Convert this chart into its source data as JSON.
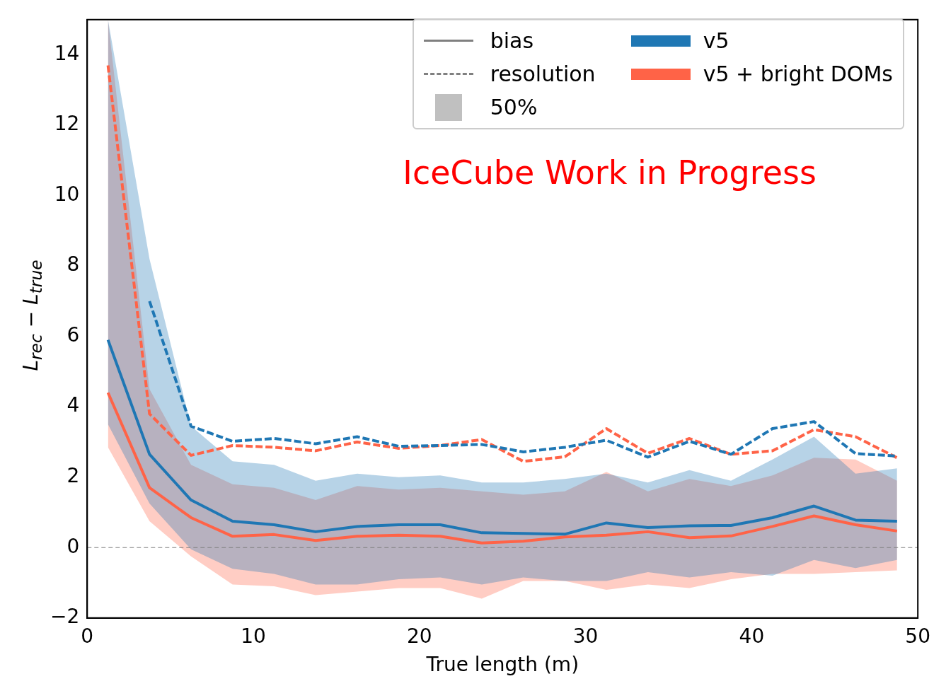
{
  "chart_data": {
    "type": "line",
    "xlabel": "True length (m)",
    "ylabel": "L$_{rec}$ − L$_{true}$",
    "x": [
      1.25,
      3.75,
      6.25,
      8.75,
      11.25,
      13.75,
      16.25,
      18.75,
      21.25,
      23.75,
      26.25,
      28.75,
      31.25,
      33.75,
      36.25,
      38.75,
      41.25,
      43.75,
      46.25,
      48.75
    ],
    "series": [
      {
        "name": "v5",
        "color": "#1f77b4",
        "line_style": "solid",
        "values": [
          5.9,
          2.65,
          1.35,
          0.75,
          0.65,
          0.45,
          0.6,
          0.65,
          0.65,
          0.42,
          0.4,
          0.38,
          0.7,
          0.57,
          0.62,
          0.63,
          0.85,
          1.18,
          0.78,
          0.75
        ],
        "lower": [
          3.5,
          1.25,
          -0.05,
          -0.6,
          -0.75,
          -1.05,
          -1.05,
          -0.9,
          -0.85,
          -1.05,
          -0.85,
          -0.95,
          -0.95,
          -0.7,
          -0.85,
          -0.7,
          -0.8,
          -0.35,
          -0.58,
          -0.35
        ],
        "upper": [
          15,
          8.2,
          3.45,
          2.45,
          2.35,
          1.9,
          2.1,
          2.0,
          2.05,
          1.85,
          1.85,
          1.95,
          2.1,
          1.85,
          2.2,
          1.9,
          2.5,
          3.15,
          2.1,
          2.25
        ]
      },
      {
        "name": "v5 + bright DOMs",
        "color": "#ff6347",
        "line_style": "solid",
        "values": [
          4.4,
          1.7,
          0.85,
          0.32,
          0.37,
          0.2,
          0.32,
          0.35,
          0.32,
          0.13,
          0.18,
          0.3,
          0.35,
          0.45,
          0.28,
          0.33,
          0.6,
          0.9,
          0.65,
          0.47
        ],
        "lower": [
          2.85,
          0.75,
          -0.25,
          -1.05,
          -1.1,
          -1.35,
          -1.25,
          -1.15,
          -1.15,
          -1.45,
          -0.95,
          -0.95,
          -1.2,
          -1.05,
          -1.15,
          -0.9,
          -0.75,
          -0.75,
          -0.7,
          -0.65
        ],
        "upper": [
          15,
          4.5,
          2.35,
          1.8,
          1.7,
          1.35,
          1.75,
          1.65,
          1.7,
          1.6,
          1.5,
          1.6,
          2.15,
          1.6,
          1.95,
          1.75,
          2.05,
          2.55,
          2.5,
          1.9
        ]
      },
      {
        "color": "#1f77b4",
        "line_style": "dashed",
        "values": [
          null,
          7.0,
          3.45,
          3.02,
          3.1,
          2.95,
          3.15,
          2.88,
          2.9,
          2.93,
          2.72,
          2.85,
          3.05,
          2.57,
          3.02,
          2.65,
          3.38,
          3.58,
          2.67,
          2.6
        ]
      },
      {
        "color": "#ff6347",
        "line_style": "dashed",
        "values": [
          13.7,
          3.8,
          2.62,
          2.9,
          2.85,
          2.75,
          3.0,
          2.82,
          2.9,
          3.07,
          2.45,
          2.58,
          3.38,
          2.68,
          3.1,
          2.65,
          2.75,
          3.35,
          3.15,
          2.55
        ]
      }
    ],
    "xlim": [
      0,
      50
    ],
    "xticks": [
      0,
      10,
      20,
      30,
      40,
      50
    ],
    "ylim": [
      -2,
      15
    ],
    "yticks": [
      -2,
      0,
      2,
      4,
      6,
      8,
      10,
      12,
      14
    ],
    "ref_lines": [
      {
        "axis": "y",
        "value": 0,
        "color": "#808080",
        "line_style": "dashed"
      }
    ],
    "annotations": [
      "bias",
      "resolution",
      "50%",
      "IceCube Work in Progress"
    ],
    "grid": false,
    "legend": "top right",
    "marker": "none"
  }
}
